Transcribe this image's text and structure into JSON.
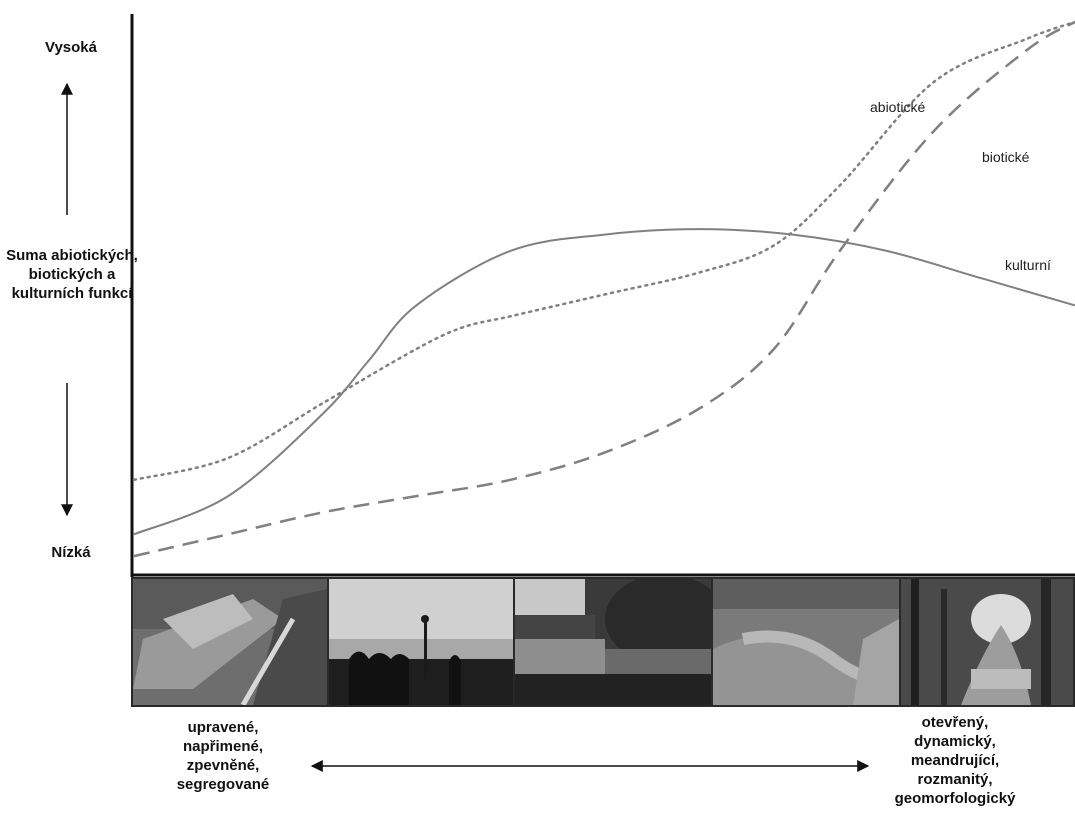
{
  "chart_data": {
    "type": "line",
    "title": "",
    "ylabel": "Suma abiotických, biotických a kulturních funkcí",
    "y_high_label": "Vysoká",
    "y_low_label": "Nízká",
    "x_left_label": "upravené, napřimené, zpevněné, segregované",
    "x_right_label": "otevřený, dynamický, meandrující, rozmanitý, geomorfologický",
    "xlim": [
      0,
      100
    ],
    "ylim": [
      0,
      100
    ],
    "grid": false,
    "series": [
      {
        "name": "abiotické",
        "style": "dotted",
        "x": [
          0,
          10,
          20,
          30,
          35,
          40,
          50,
          60,
          68,
          75,
          85,
          95,
          100
        ],
        "y": [
          16,
          20,
          30,
          40,
          44,
          46,
          50,
          54,
          59,
          70,
          89,
          97,
          100
        ]
      },
      {
        "name": "biotické",
        "style": "dashed",
        "x": [
          0,
          10,
          20,
          30,
          40,
          50,
          60,
          68,
          75,
          85,
          95,
          100
        ],
        "y": [
          2,
          6,
          10,
          13,
          16,
          21,
          29,
          40,
          58,
          80,
          95,
          100
        ]
      },
      {
        "name": "kulturní",
        "style": "solid",
        "x": [
          0,
          10,
          20,
          25,
          30,
          40,
          50,
          60,
          70,
          80,
          90,
          100
        ],
        "y": [
          6,
          13,
          28,
          38,
          48,
          58,
          61,
          62,
          61,
          58,
          53,
          48
        ]
      }
    ]
  },
  "photos": [
    "regulated-channel-photo",
    "urban-waterfront-photo",
    "pond-shore-photo",
    "overgrown-stream-photo",
    "natural-forest-river-photo"
  ],
  "colors": {
    "axis": "#111111",
    "line": "#808080",
    "strip": "#2a2a2a"
  }
}
